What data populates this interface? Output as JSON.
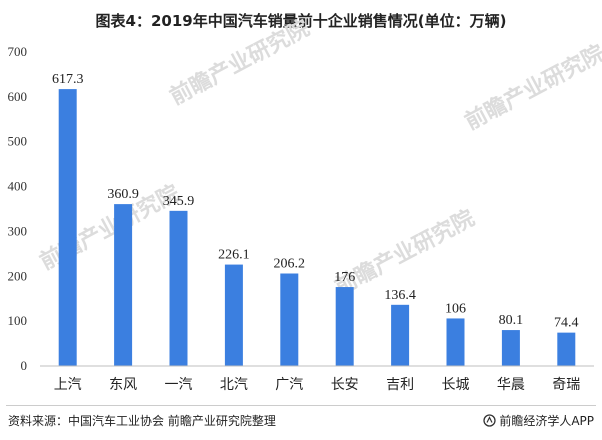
{
  "chart_data": {
    "type": "bar",
    "title": "图表4：2019年中国汽车销量前十企业销售情况(单位：万辆)",
    "categories": [
      "上汽",
      "东风",
      "一汽",
      "北汽",
      "广汽",
      "长安",
      "吉利",
      "长城",
      "华晨",
      "奇瑞"
    ],
    "values": [
      617.3,
      360.9,
      345.9,
      226.1,
      206.2,
      176,
      136.4,
      106,
      80.1,
      74.4
    ],
    "data_labels": [
      "617.3",
      "360.9",
      "345.9",
      "226.1",
      "206.2",
      "176",
      "136.4",
      "106",
      "80.1",
      "74.4"
    ],
    "yticks": [
      0,
      100,
      200,
      300,
      400,
      500,
      600,
      700
    ],
    "ylim": [
      0,
      700
    ],
    "xlabel": "",
    "ylabel": "",
    "grid": false,
    "bar_color": "#3b7fe0"
  },
  "footer": {
    "source": "资料来源：中国汽车工业协会 前瞻产业研究院整理",
    "brand": "前瞻经济学人APP"
  },
  "watermark": {
    "text": "前瞻产业研究院"
  },
  "icons": {
    "brand": "brand-logo-icon"
  }
}
